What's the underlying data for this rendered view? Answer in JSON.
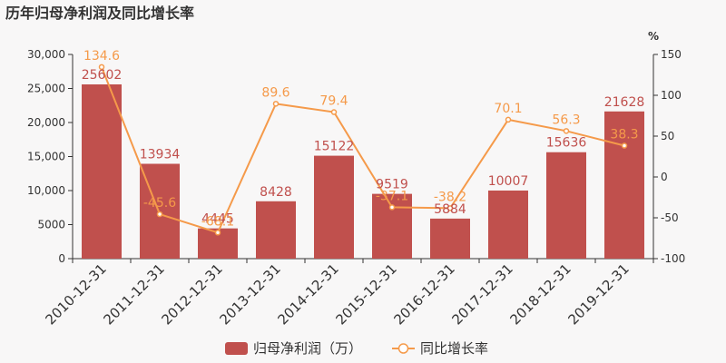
{
  "chart_data": {
    "type": "bar",
    "title": "历年归母净利润及同比增长率",
    "categories": [
      "2010-12-31",
      "2011-12-31",
      "2012-12-31",
      "2013-12-31",
      "2014-12-31",
      "2015-12-31",
      "2016-12-31",
      "2017-12-31",
      "2018-12-31",
      "2019-12-31"
    ],
    "series": [
      {
        "name": "归母净利润（万）",
        "type": "bar",
        "axis": "left",
        "values": [
          25602,
          13934,
          4445,
          8428,
          15122,
          9519,
          5884,
          10007,
          15636,
          21628
        ]
      },
      {
        "name": "同比增长率",
        "type": "line",
        "axis": "right",
        "values": [
          134.6,
          -45.6,
          -68.1,
          89.6,
          79.4,
          -37.1,
          -38.2,
          70.1,
          56.3,
          38.3
        ]
      }
    ],
    "y_left": {
      "ylim": [
        0,
        30000
      ],
      "ticks": [
        "0",
        "5000",
        "10,000",
        "15,000",
        "20,000",
        "25,000",
        "30,000"
      ]
    },
    "y_right": {
      "ylim": [
        -100,
        150
      ],
      "unit": "%",
      "ticks": [
        "-100",
        "-50",
        "0",
        "50",
        "100",
        "150"
      ]
    },
    "colors": {
      "bar": "#c0504d",
      "line": "#f59a4a",
      "bar_label": "#c0504d",
      "line_label": "#f59a4a"
    },
    "legend": {
      "position": "bottom"
    },
    "grid": false
  }
}
